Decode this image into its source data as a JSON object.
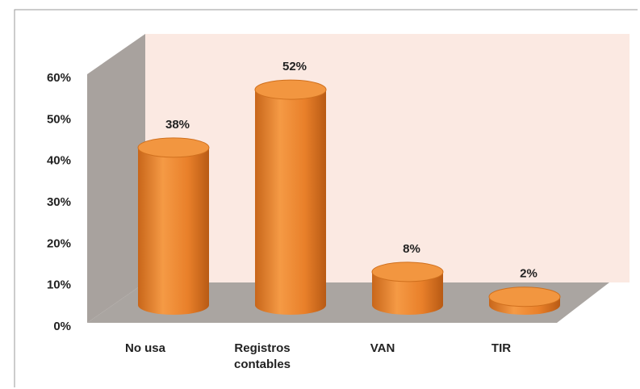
{
  "chart_data": {
    "type": "bar3d",
    "categories": [
      "No usa",
      "Registros contables",
      "VAN",
      "TIR"
    ],
    "values": [
      38,
      52,
      8,
      2
    ],
    "value_labels": [
      "38%",
      "52%",
      "8%",
      "2%"
    ],
    "color": "#f08a2c",
    "ylim": [
      0,
      60
    ],
    "yticks": [
      {
        "value": 0,
        "label": "0%"
      },
      {
        "value": 10,
        "label": "10%"
      },
      {
        "value": 20,
        "label": "20%"
      },
      {
        "value": 30,
        "label": "30%"
      },
      {
        "value": 40,
        "label": "40%"
      },
      {
        "value": 50,
        "label": "50%"
      },
      {
        "value": 60,
        "label": "60%"
      }
    ],
    "grid": false
  }
}
